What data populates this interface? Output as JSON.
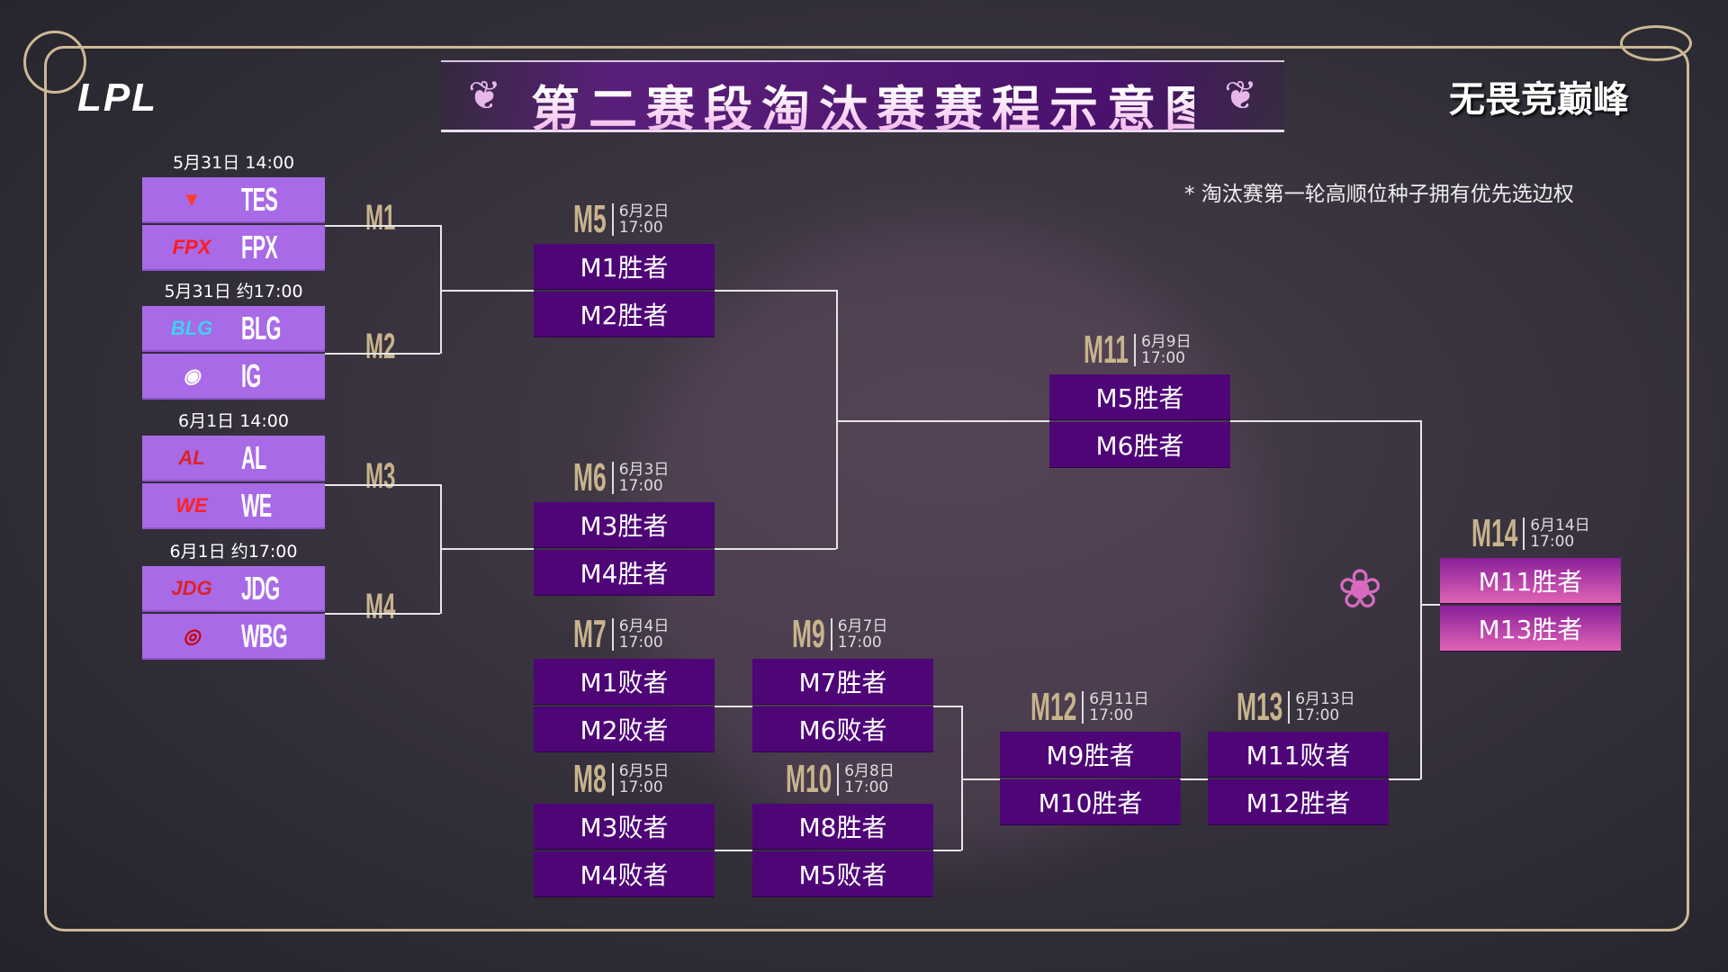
{
  "header": {
    "logo": "LPL",
    "title": "第二赛段淘汰赛赛程示意图",
    "slogan": "无畏竞巅峰",
    "note": "* 淘汰赛第一轮高顺位种子拥有优先选边权",
    "ornament": "❦"
  },
  "colors": {
    "team_box": "#a86ae6",
    "match_box": "#4e0677",
    "final_box": "#e063b6",
    "gold": "#c8b48c"
  },
  "round1": [
    {
      "date": "5月31日 14:00",
      "match": "M1",
      "teams": [
        {
          "name": "TES",
          "logo": "▼"
        },
        {
          "name": "FPX",
          "logo": "FPX"
        }
      ]
    },
    {
      "date": "5月31日 约17:00",
      "match": "M2",
      "teams": [
        {
          "name": "BLG",
          "logo": "BLG"
        },
        {
          "name": "IG",
          "logo": "◉"
        }
      ]
    },
    {
      "date": "6月1日 14:00",
      "match": "M3",
      "teams": [
        {
          "name": "AL",
          "logo": "AL"
        },
        {
          "name": "WE",
          "logo": "WE"
        }
      ]
    },
    {
      "date": "6月1日 约17:00",
      "match": "M4",
      "teams": [
        {
          "name": "JDG",
          "logo": "JDG"
        },
        {
          "name": "WBG",
          "logo": "◎"
        }
      ]
    }
  ],
  "matches": [
    {
      "id": "M5",
      "date": "6月2日",
      "time": "17:00",
      "slots": [
        "M1胜者",
        "M2胜者"
      ]
    },
    {
      "id": "M6",
      "date": "6月3日",
      "time": "17:00",
      "slots": [
        "M3胜者",
        "M4胜者"
      ]
    },
    {
      "id": "M7",
      "date": "6月4日",
      "time": "17:00",
      "slots": [
        "M1败者",
        "M2败者"
      ]
    },
    {
      "id": "M8",
      "date": "6月5日",
      "time": "17:00",
      "slots": [
        "M3败者",
        "M4败者"
      ]
    },
    {
      "id": "M9",
      "date": "6月7日",
      "time": "17:00",
      "slots": [
        "M7胜者",
        "M6败者"
      ]
    },
    {
      "id": "M10",
      "date": "6月8日",
      "time": "17:00",
      "slots": [
        "M8胜者",
        "M5败者"
      ]
    },
    {
      "id": "M11",
      "date": "6月9日",
      "time": "17:00",
      "slots": [
        "M5胜者",
        "M6胜者"
      ]
    },
    {
      "id": "M12",
      "date": "6月11日",
      "time": "17:00",
      "slots": [
        "M9胜者",
        "M10胜者"
      ]
    },
    {
      "id": "M13",
      "date": "6月13日",
      "time": "17:00",
      "slots": [
        "M11败者",
        "M12胜者"
      ]
    },
    {
      "id": "M14",
      "date": "6月14日",
      "time": "17:00",
      "slots": [
        "M11胜者",
        "M13胜者"
      ]
    }
  ]
}
